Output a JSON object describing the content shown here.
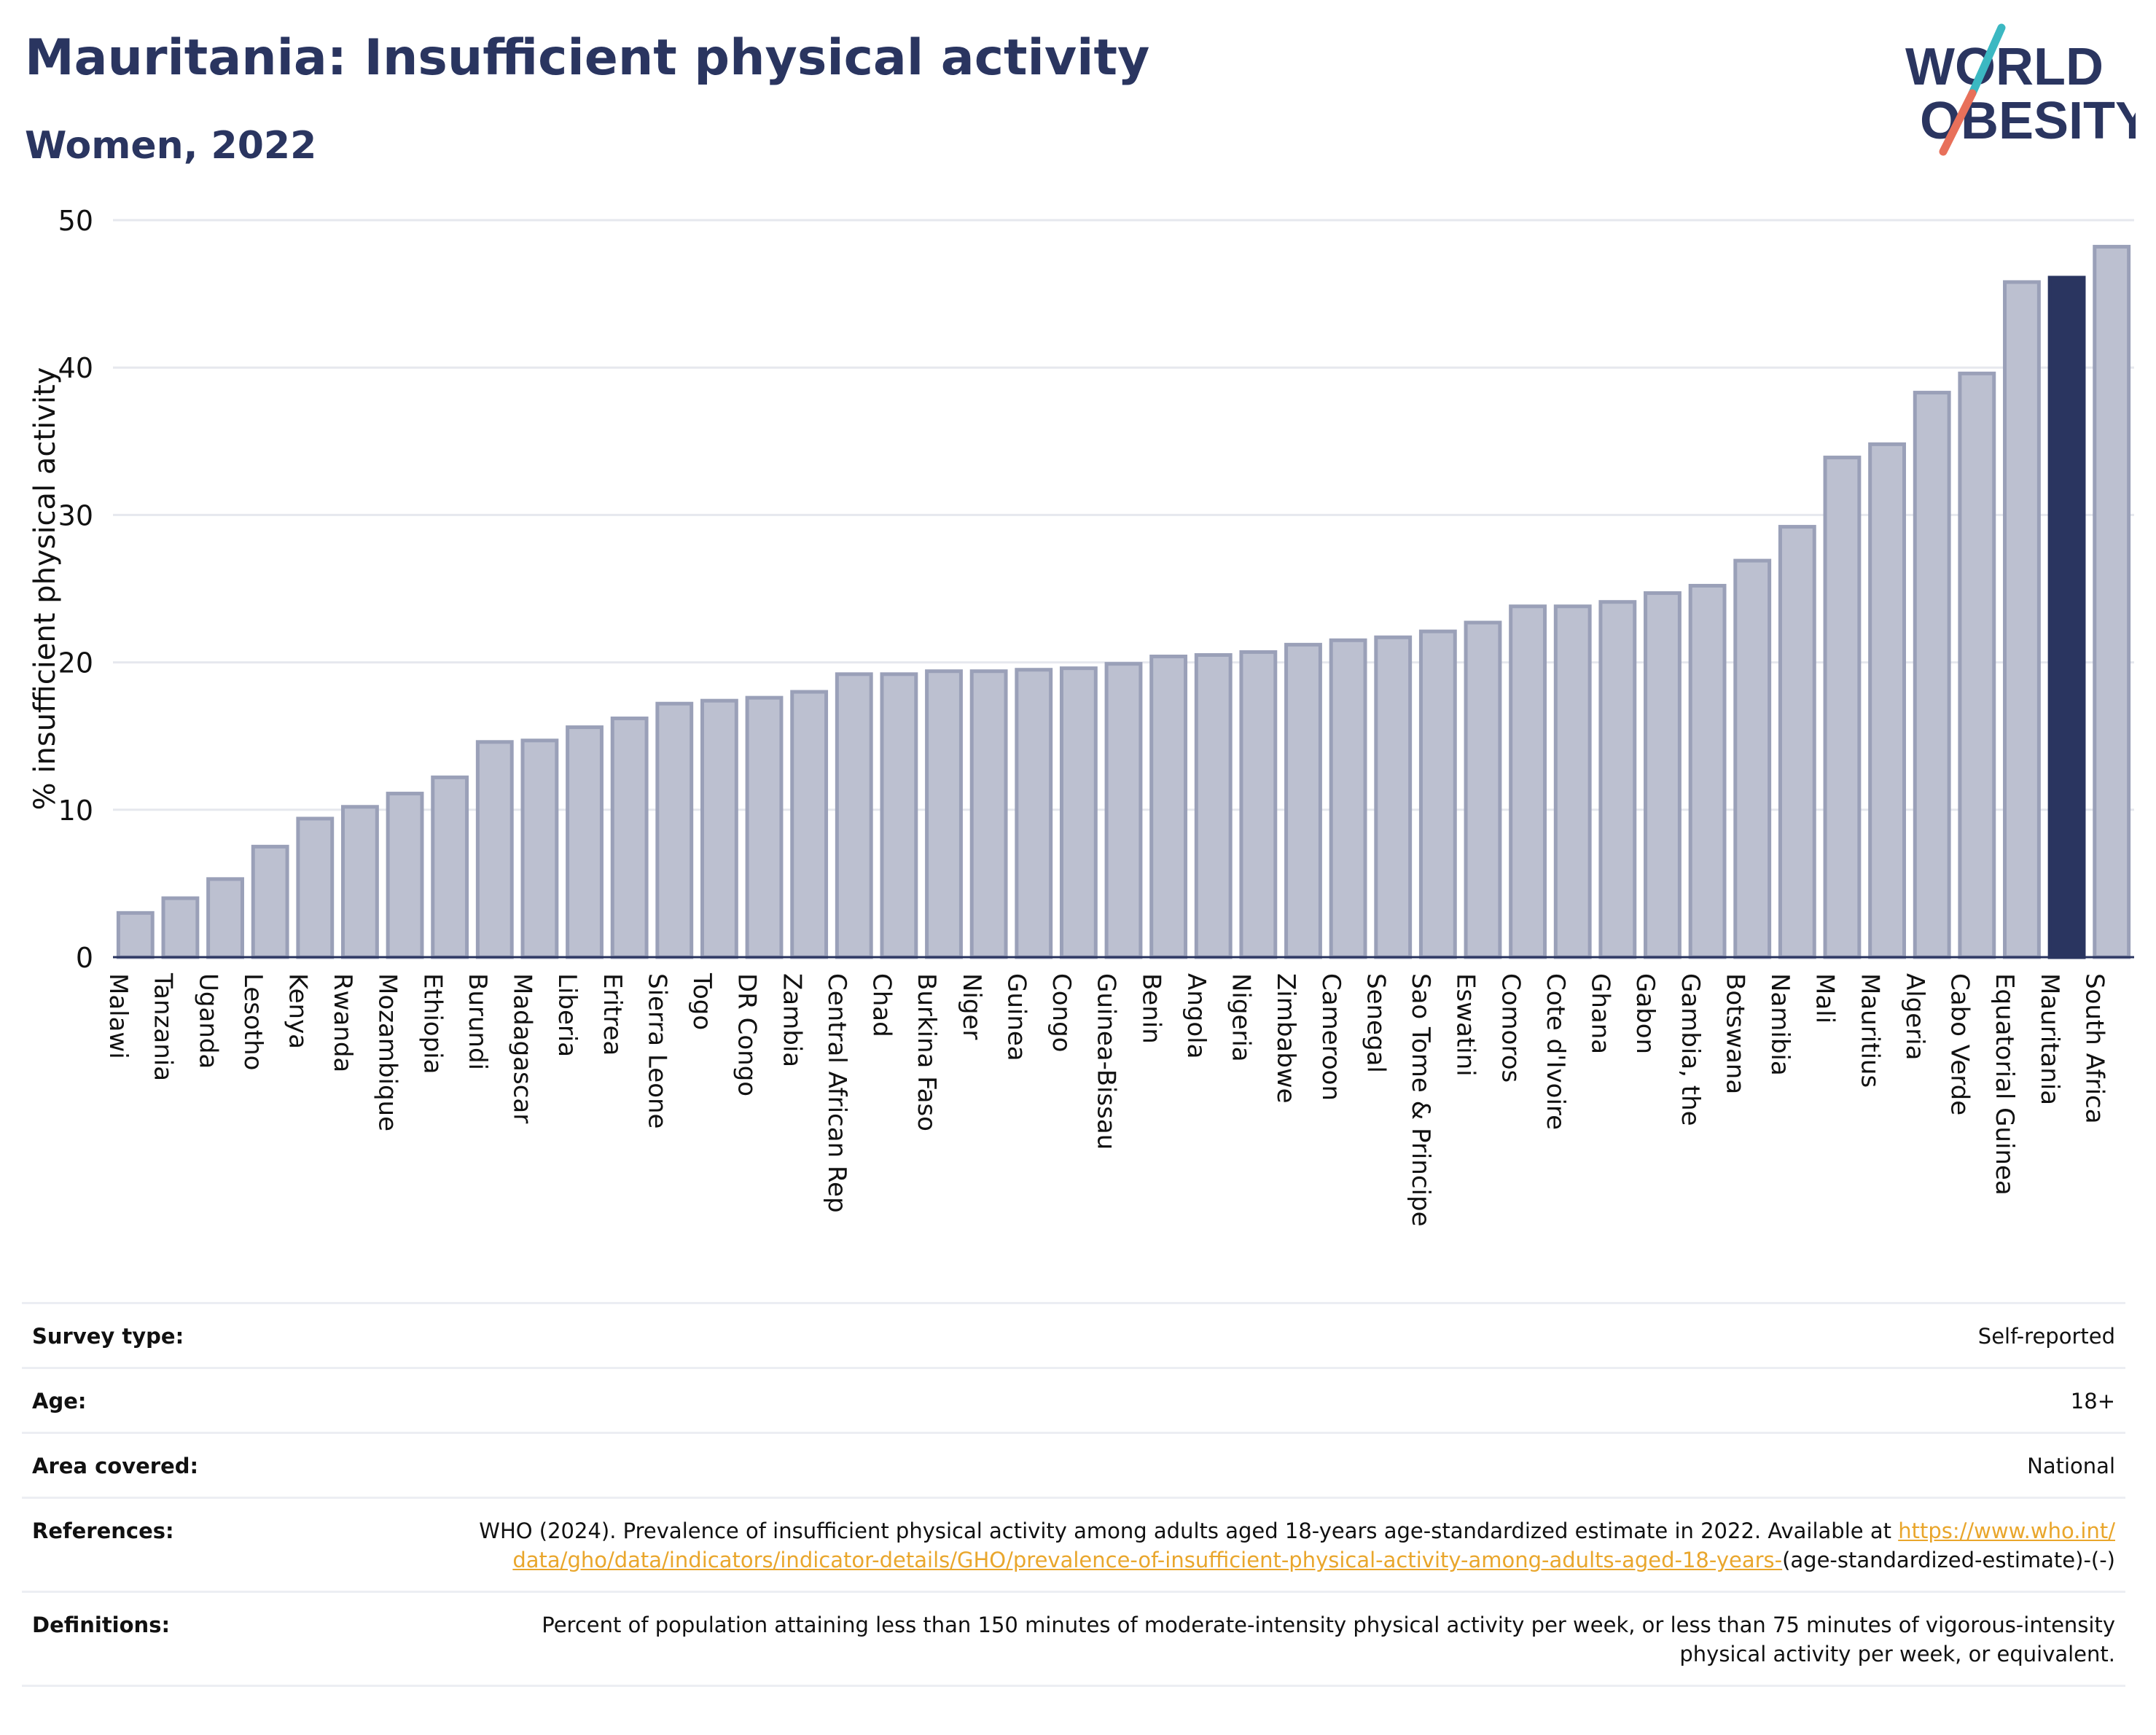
{
  "header": {
    "title": "Mauritania: Insufficient physical activity",
    "subtitle": "Women, 2022"
  },
  "logo": {
    "line1": "WORLD",
    "line2": "OBESITY",
    "text_color": "#2a3560",
    "slash_color_top": "#3bb8c2",
    "slash_color_bottom": "#e8705a"
  },
  "colors": {
    "bar_default": "#bcc0d0",
    "bar_default_outline": "#9aa0b8",
    "bar_highlight": "#2a3560",
    "grid": "#e6e8ee",
    "axis": "#2a3560"
  },
  "chart_data": {
    "type": "bar",
    "title": "Mauritania: Insufficient physical activity",
    "subtitle": "Women, 2022",
    "xlabel": "",
    "ylabel": "% insufficient physical activity",
    "ylim": [
      0,
      50
    ],
    "yticks": [
      0,
      10,
      20,
      30,
      40,
      50
    ],
    "grid": true,
    "highlight": "Mauritania",
    "categories": [
      "Malawi",
      "Tanzania",
      "Uganda",
      "Lesotho",
      "Kenya",
      "Rwanda",
      "Mozambique",
      "Ethiopia",
      "Burundi",
      "Madagascar",
      "Liberia",
      "Eritrea",
      "Sierra Leone",
      "Togo",
      "DR Congo",
      "Zambia",
      "Central African Rep",
      "Chad",
      "Burkina Faso",
      "Niger",
      "Guinea",
      "Congo",
      "Guinea-Bissau",
      "Benin",
      "Angola",
      "Nigeria",
      "Zimbabwe",
      "Cameroon",
      "Senegal",
      "Sao Tome & Principe",
      "Eswatini",
      "Comoros",
      "Cote d'Ivoire",
      "Ghana",
      "Gabon",
      "Gambia, the",
      "Botswana",
      "Namibia",
      "Mali",
      "Mauritius",
      "Algeria",
      "Cabo Verde",
      "Equatorial Guinea",
      "Mauritania",
      "South Africa"
    ],
    "values": [
      3.0,
      4.0,
      5.3,
      7.5,
      9.4,
      10.2,
      11.1,
      12.2,
      14.6,
      14.7,
      15.6,
      16.2,
      17.2,
      17.4,
      17.6,
      18.0,
      19.2,
      19.2,
      19.4,
      19.4,
      19.5,
      19.6,
      19.9,
      20.4,
      20.5,
      20.7,
      21.2,
      21.5,
      21.7,
      22.1,
      22.7,
      23.8,
      23.8,
      24.1,
      24.7,
      25.2,
      26.9,
      29.2,
      33.9,
      34.8,
      38.3,
      39.6,
      45.8,
      46.1,
      48.2
    ]
  },
  "info": {
    "survey_type": {
      "label": "Survey type:",
      "value": "Self-reported"
    },
    "age": {
      "label": "Age:",
      "value": "18+"
    },
    "area": {
      "label": "Area covered:",
      "value": "National"
    },
    "references": {
      "label": "References:",
      "text": "WHO (2024). Prevalence of insufficient physical activity among adults aged 18-years age-standardized estimate in 2022. Available at",
      "link": "https://www.who.int/data/gho/data/indicators/indicator-details/GHO/prevalence-of-insufficient-physical-activity-among-adults-aged-18-years-",
      "suffix": "(age-standardized-estimate)-(-)"
    },
    "definitions": {
      "label": "Definitions:",
      "value": "Percent of population attaining less than 150 minutes of moderate-intensity physical activity per week, or less than 75 minutes of vigorous-intensity physical activity per week, or equivalent."
    }
  }
}
